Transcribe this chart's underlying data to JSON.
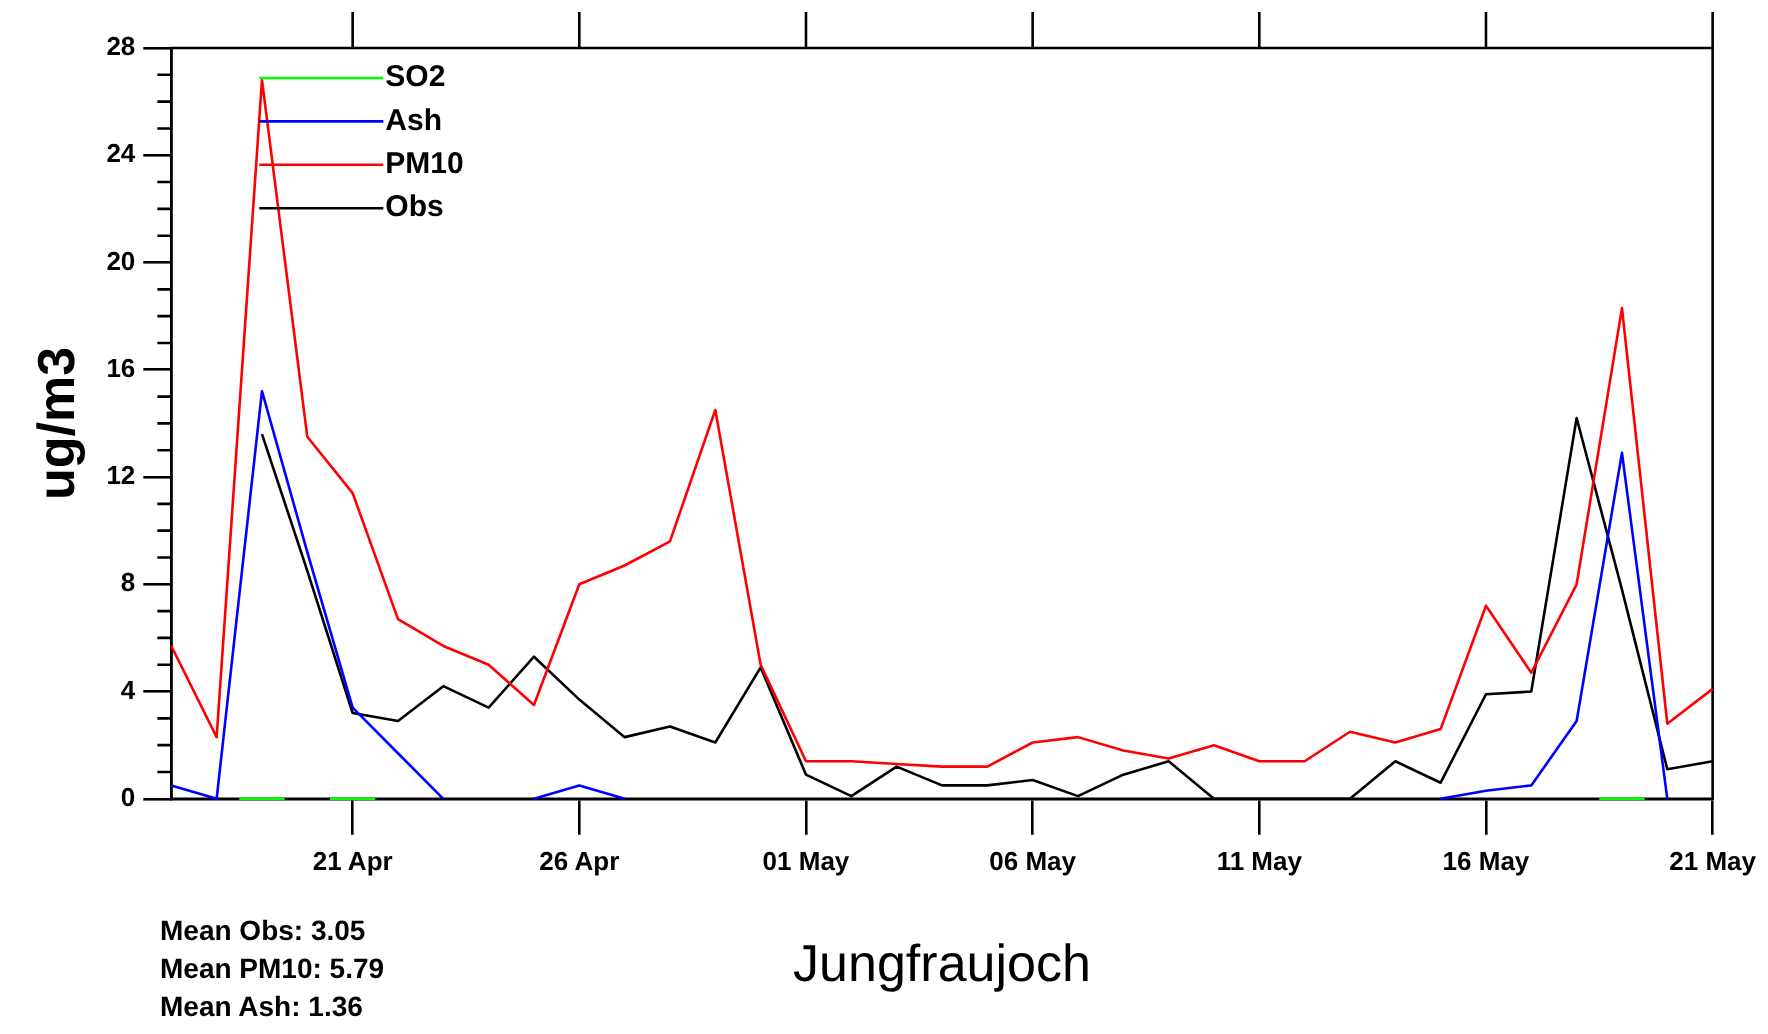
{
  "chart_data": {
    "type": "line",
    "xlabel": "Jungfraujoch",
    "ylabel": "ug/m3",
    "x": [
      "--04-17",
      "--04-18",
      "--04-19",
      "--04-20",
      "--04-21",
      "--04-22",
      "--04-23",
      "--04-24",
      "--04-25",
      "--04-26",
      "--04-27",
      "--04-28",
      "--04-29",
      "--04-30",
      "--05-01",
      "--05-02",
      "--05-03",
      "--05-04",
      "--05-05",
      "--05-06",
      "--05-07",
      "--05-08",
      "--05-09",
      "--05-10",
      "--05-11",
      "--05-12",
      "--05-13",
      "--05-14",
      "--05-15",
      "--05-16",
      "--05-17",
      "--05-18",
      "--05-19",
      "--05-20",
      "--05-21"
    ],
    "series": [
      {
        "name": "SO2",
        "color": "#00ff00",
        "x": [
          "--04-18T12:00",
          "--04-19T12:00",
          "--04-20T00:00",
          "--04-20T12:00",
          "--04-21T12:00",
          "--05-01T00:00",
          "--05-18T12:00",
          "--05-19T12:00"
        ],
        "values": [
          0,
          0,
          null,
          0,
          0,
          null,
          0,
          0
        ]
      },
      {
        "name": "Ash",
        "color": "#0000ff",
        "values": [
          0.5,
          0,
          15.2,
          9.2,
          3.4,
          1.7,
          0,
          null,
          0,
          0.5,
          0,
          null,
          null,
          null,
          null,
          null,
          null,
          null,
          null,
          null,
          null,
          null,
          null,
          null,
          null,
          null,
          null,
          null,
          0,
          0.3,
          0.5,
          2.9,
          12.9,
          0,
          null
        ]
      },
      {
        "name": "PM10",
        "color": "#ff0000",
        "values": [
          5.7,
          2.3,
          26.8,
          13.5,
          11.4,
          6.7,
          5.7,
          5.0,
          3.5,
          8.0,
          8.7,
          9.6,
          14.5,
          5.0,
          1.4,
          1.4,
          1.3,
          1.2,
          1.2,
          2.1,
          2.3,
          1.8,
          1.5,
          2.0,
          1.4,
          1.4,
          2.5,
          2.1,
          2.6,
          7.2,
          4.7,
          8.0,
          18.3,
          2.8,
          4.1
        ]
      },
      {
        "name": "Obs",
        "color": "#000000",
        "values": [
          null,
          null,
          13.6,
          8.5,
          3.2,
          2.9,
          4.2,
          3.4,
          5.3,
          3.7,
          2.3,
          2.7,
          2.1,
          4.9,
          0.9,
          0.1,
          1.2,
          0.5,
          0.5,
          0.7,
          0.1,
          0.9,
          1.4,
          0,
          0,
          0,
          0,
          1.4,
          0.6,
          3.9,
          4.0,
          14.2,
          7.8,
          1.1,
          1.4
        ]
      }
    ],
    "xlim": [
      "--04-17",
      "--05-21"
    ],
    "xticks": [
      {
        "value": "--04-21",
        "label": "21 Apr"
      },
      {
        "value": "--04-26",
        "label": "26 Apr"
      },
      {
        "value": "--05-01",
        "label": "01 May"
      },
      {
        "value": "--05-06",
        "label": "06 May"
      },
      {
        "value": "--05-11",
        "label": "11 May"
      },
      {
        "value": "--05-16",
        "label": "16 May"
      },
      {
        "value": "--05-21",
        "label": "21 May"
      }
    ],
    "ylim": [
      0,
      28
    ],
    "yticks": [
      0,
      4,
      8,
      12,
      16,
      20,
      24,
      28
    ],
    "legend": "top left",
    "marker": "none",
    "line_style": "solid",
    "grid": false,
    "annotations": [
      "Mean Obs: 3.05",
      "Mean PM10: 5.79",
      "Mean Ash: 1.36"
    ]
  }
}
